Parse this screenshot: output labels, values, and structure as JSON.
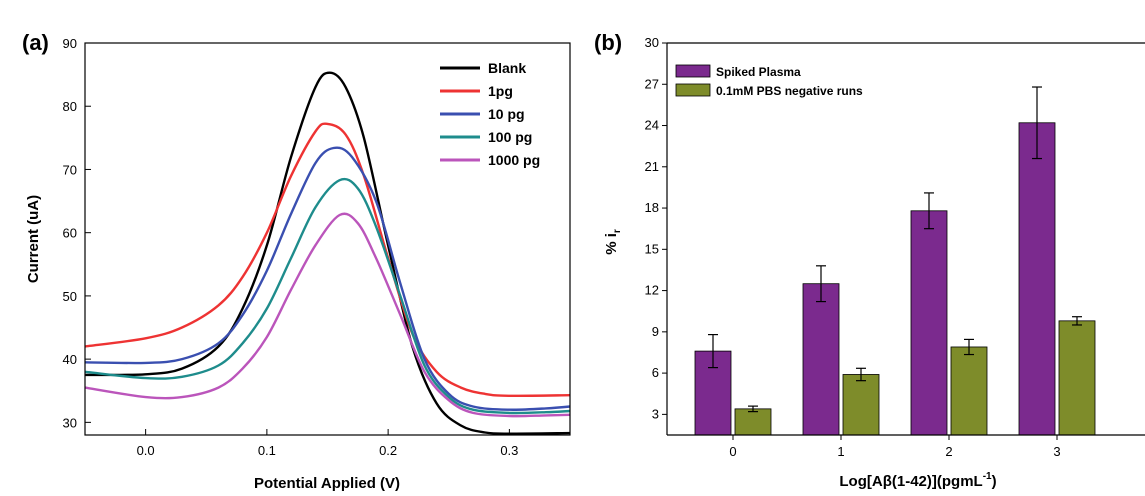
{
  "chart_data": [
    {
      "panel": "(a)",
      "type": "line",
      "xlabel": "Potential Applied (V)",
      "ylabel": "Current (uA)",
      "xlim": [
        -0.05,
        0.35
      ],
      "ylim": [
        28,
        90
      ],
      "xticks": [
        0.0,
        0.1,
        0.2,
        0.3
      ],
      "xtick_labels": [
        "0.0",
        "0.1",
        "0.2",
        "0.3"
      ],
      "yticks": [
        30,
        40,
        50,
        60,
        70,
        80,
        90
      ],
      "ytick_labels": [
        "30",
        "40",
        "50",
        "60",
        "70",
        "80",
        "90"
      ],
      "legend_position": "top-right",
      "series": [
        {
          "name": "Blank",
          "color": "#000000",
          "points": [
            [
              -0.05,
              37.5
            ],
            [
              0.0,
              37.6
            ],
            [
              0.03,
              38.5
            ],
            [
              0.06,
              42
            ],
            [
              0.08,
              48
            ],
            [
              0.1,
              58
            ],
            [
              0.12,
              72
            ],
            [
              0.14,
              83
            ],
            [
              0.152,
              85.3
            ],
            [
              0.165,
              83
            ],
            [
              0.18,
              75
            ],
            [
              0.2,
              58
            ],
            [
              0.22,
              42
            ],
            [
              0.24,
              33
            ],
            [
              0.26,
              29.5
            ],
            [
              0.28,
              28.4
            ],
            [
              0.3,
              28.2
            ],
            [
              0.35,
              28.3
            ]
          ]
        },
        {
          "name": "1pg",
          "color": "#ee3333",
          "points": [
            [
              -0.05,
              42
            ],
            [
              0.0,
              43.3
            ],
            [
              0.03,
              45
            ],
            [
              0.06,
              48.5
            ],
            [
              0.08,
              53
            ],
            [
              0.1,
              60
            ],
            [
              0.12,
              69
            ],
            [
              0.14,
              76
            ],
            [
              0.15,
              77.2
            ],
            [
              0.165,
              75.5
            ],
            [
              0.18,
              69
            ],
            [
              0.2,
              56
            ],
            [
              0.22,
              44
            ],
            [
              0.24,
              38
            ],
            [
              0.26,
              35.5
            ],
            [
              0.28,
              34.5
            ],
            [
              0.3,
              34.2
            ],
            [
              0.35,
              34.3
            ]
          ]
        },
        {
          "name": "10 pg",
          "color": "#3a4fb0",
          "points": [
            [
              -0.05,
              39.5
            ],
            [
              0.0,
              39.4
            ],
            [
              0.03,
              40
            ],
            [
              0.06,
              42.5
            ],
            [
              0.08,
              47
            ],
            [
              0.1,
              54
            ],
            [
              0.12,
              63
            ],
            [
              0.14,
              71
            ],
            [
              0.155,
              73.4
            ],
            [
              0.17,
              72
            ],
            [
              0.19,
              65
            ],
            [
              0.21,
              52
            ],
            [
              0.23,
              40
            ],
            [
              0.25,
              34.5
            ],
            [
              0.27,
              32.5
            ],
            [
              0.3,
              32
            ],
            [
              0.33,
              32.2
            ],
            [
              0.35,
              32.5
            ]
          ]
        },
        {
          "name": "100 pg",
          "color": "#1e8c8c",
          "points": [
            [
              -0.05,
              38
            ],
            [
              0.0,
              37
            ],
            [
              0.03,
              37.2
            ],
            [
              0.06,
              39
            ],
            [
              0.08,
              42.5
            ],
            [
              0.1,
              48
            ],
            [
              0.12,
              56
            ],
            [
              0.14,
              64
            ],
            [
              0.16,
              68.3
            ],
            [
              0.175,
              67
            ],
            [
              0.19,
              61
            ],
            [
              0.21,
              50
            ],
            [
              0.23,
              39
            ],
            [
              0.25,
              34
            ],
            [
              0.27,
              32
            ],
            [
              0.3,
              31.5
            ],
            [
              0.33,
              31.6
            ],
            [
              0.35,
              31.8
            ]
          ]
        },
        {
          "name": "1000 pg",
          "color": "#bb55bb",
          "points": [
            [
              -0.05,
              35.5
            ],
            [
              0.0,
              34
            ],
            [
              0.03,
              34
            ],
            [
              0.06,
              35.5
            ],
            [
              0.08,
              38.5
            ],
            [
              0.1,
              43.5
            ],
            [
              0.12,
              51
            ],
            [
              0.14,
              58
            ],
            [
              0.16,
              62.8
            ],
            [
              0.175,
              61.5
            ],
            [
              0.19,
              56
            ],
            [
              0.21,
              47
            ],
            [
              0.23,
              38
            ],
            [
              0.25,
              33.5
            ],
            [
              0.27,
              31.5
            ],
            [
              0.3,
              31
            ],
            [
              0.33,
              31.1
            ],
            [
              0.35,
              31.2
            ]
          ]
        }
      ]
    },
    {
      "panel": "(b)",
      "type": "bar",
      "xlabel": "Log[Aβ(1-42)](pgmL",
      "xlabel_sup": "-1",
      "xlabel_end": ")",
      "ylabel": "% i",
      "ylabel_sub": "r",
      "categories": [
        "0",
        "1",
        "2",
        "3"
      ],
      "ylim": [
        1.5,
        30
      ],
      "yticks": [
        3,
        6,
        9,
        12,
        15,
        18,
        21,
        24,
        27,
        30
      ],
      "ytick_labels": [
        "3",
        "6",
        "9",
        "12",
        "15",
        "18",
        "21",
        "24",
        "27",
        "30"
      ],
      "legend_position": "top-left",
      "series": [
        {
          "name": "Spiked Plasma",
          "color": "#7b2a8e",
          "values": [
            7.6,
            12.5,
            17.8,
            24.2
          ],
          "errors": [
            1.2,
            1.3,
            1.3,
            2.6
          ]
        },
        {
          "name": "0.1mM PBS negative runs",
          "color": "#7e8c2a",
          "values": [
            3.4,
            5.9,
            7.9,
            9.8
          ],
          "errors": [
            0.2,
            0.45,
            0.55,
            0.3
          ]
        }
      ]
    }
  ]
}
